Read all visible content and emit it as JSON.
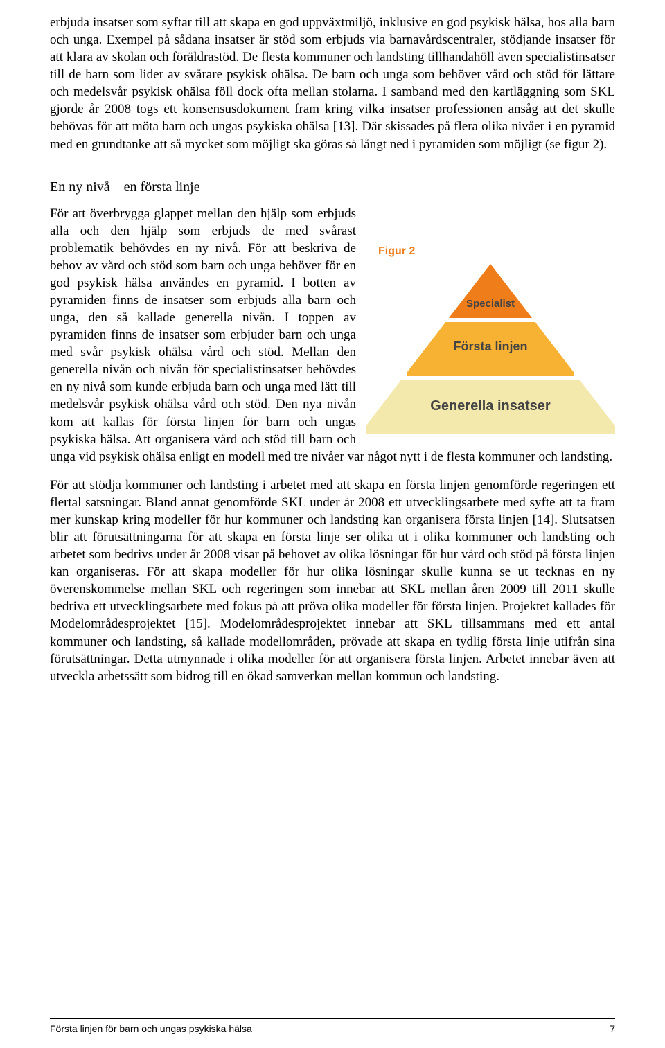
{
  "paragraph1": "erbjuda insatser som syftar till att skapa en god uppväxtmiljö, inklusive en god psykisk hälsa, hos alla barn och unga. Exempel på sådana insatser är stöd som erbjuds via barnavårdscentraler, stödjande insatser för att klara av skolan och föräldrastöd. De flesta kommuner och landsting tillhandahöll även specialistinsatser till de barn som lider av svårare psykisk ohälsa. De barn och unga som behöver vård och stöd för lättare och medelsvår psykisk ohälsa föll dock ofta mellan stolarna. I samband med den kartläggning som SKL gjorde år 2008 togs ett konsensusdokument fram kring vilka insatser professionen ansåg att det skulle behövas för att möta barn och ungas psykiska ohälsa [13]. Där skissades på flera olika nivåer i en pyramid med en grundtanke att så mycket som möjligt ska göras så långt ned i pyramiden som möjligt (se figur 2).",
  "heading": "En ny nivå – en första linje",
  "paragraph2": "För att överbrygga glappet mellan den hjälp som erbjuds alla och den hjälp som erbjuds de med svårast problematik behövdes en ny nivå. För att beskriva de behov av vård och stöd som barn och unga behöver för en god psykisk hälsa användes en pyramid. I botten av pyramiden finns de insatser som erbjuds alla barn och unga, den så kallade generella nivån. I toppen av pyramiden finns de insatser som erbjuder barn och unga med svår psykisk ohälsa vård och stöd. Mellan den generella nivån och nivån för specialistinsatser behövdes en ny nivå som kunde erbjuda barn och unga med lätt till medelsvår psykisk ohälsa vård och stöd. Den nya nivån kom att kallas för första linjen för barn och ungas psykiska hälsa. Att organisera vård och stöd till barn och unga vid psykisk ohälsa enligt en modell med tre nivåer var något nytt i de flesta kommuner och landsting.",
  "paragraph3": "För att stödja kommuner och landsting i arbetet med att skapa en första linjen genomförde regeringen ett flertal satsningar. Bland annat genomförde SKL under år 2008 ett utvecklingsarbete med syfte att ta fram mer kunskap kring modeller för hur kommuner och landsting kan organisera första linjen [14]. Slutsatsen blir att förutsättningarna för att skapa en första linje ser olika ut i olika kommuner och landsting och arbetet som bedrivs under år 2008 visar på behovet av olika lösningar för hur vård och stöd på första linjen kan organiseras. För att skapa modeller för hur olika lösningar skulle kunna se ut tecknas en ny överenskommelse mellan SKL och regeringen som innebar att SKL mellan åren 2009 till 2011 skulle bedriva ett utvecklingsarbete med fokus på att pröva olika modeller för första linjen. Projektet kallades för Modelområdesprojektet [15]. Modelområdesprojektet innebar att SKL tillsammans med ett antal kommuner och landsting, så kallade modellområden, prövade att skapa en tydlig första linje utifrån sina förutsättningar. Detta utmynnade i olika modeller för att organisera första linjen. Arbetet innebar även att utveckla arbetssätt som bidrog till en ökad samverkan mellan kommun och landsting.",
  "figure": {
    "label": "Figur 2",
    "type": "pyramid",
    "tiers": [
      {
        "label": "Specialist",
        "color": "#ef7d1a"
      },
      {
        "label": "Första linjen",
        "color": "#f7b233"
      },
      {
        "label": "Generella insatser",
        "color": "#f4e9ad"
      }
    ],
    "label_color": "#ef7d1a",
    "tier_text_color": "#444444",
    "background": "#ffffff",
    "font_family": "Arial"
  },
  "footer": {
    "title": "Första linjen för barn och ungas psykiska hälsa",
    "page": "7"
  }
}
